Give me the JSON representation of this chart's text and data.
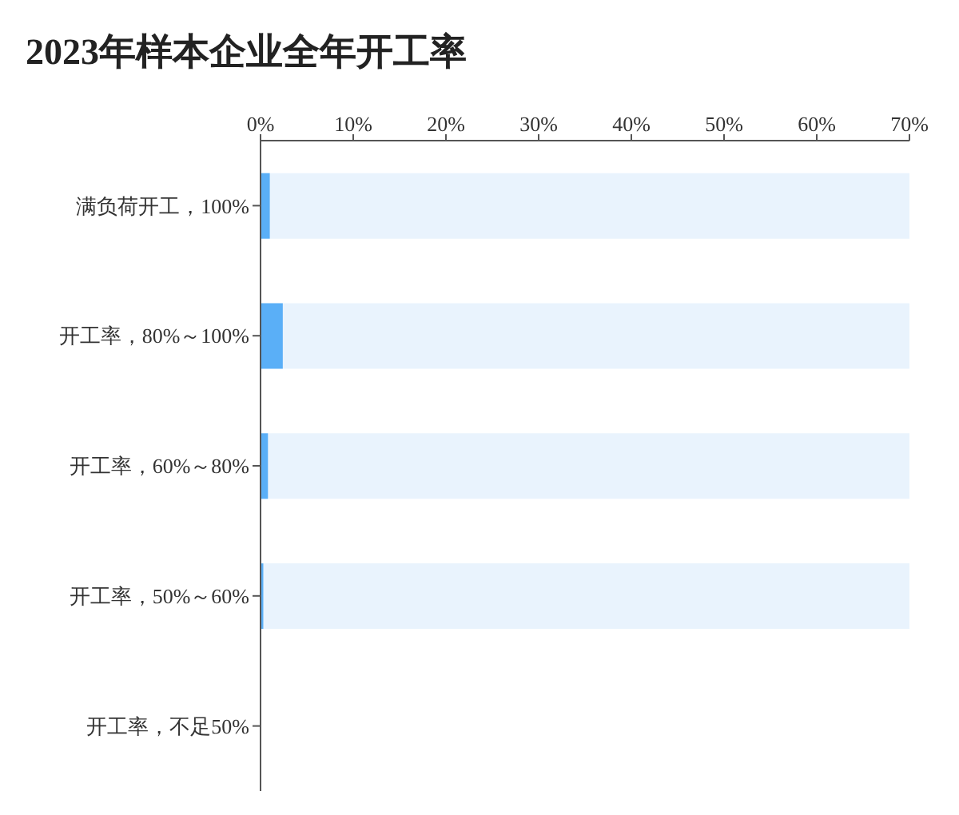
{
  "chart_data": {
    "type": "bar",
    "orientation": "horizontal",
    "title": "2023年样本企业全年开工率",
    "categories": [
      "满负荷开工，100%",
      "开工率，80%～100%",
      "开工率，60%～80%",
      "开工率，50%～60%",
      "开工率，不足50%"
    ],
    "values": [
      1.0,
      2.4,
      0.8,
      0.3,
      0
    ],
    "color": "#5aaff7",
    "xlim": [
      0,
      70
    ],
    "xticks": [
      {
        "value": 0,
        "label": "0%"
      },
      {
        "value": 10,
        "label": "10%"
      },
      {
        "value": 20,
        "label": "20%"
      },
      {
        "value": 30,
        "label": "30%"
      },
      {
        "value": 40,
        "label": "40%"
      },
      {
        "value": 50,
        "label": "50%"
      },
      {
        "value": 60,
        "label": "60%"
      },
      {
        "value": 70,
        "label": "70%"
      }
    ],
    "grid": false
  }
}
